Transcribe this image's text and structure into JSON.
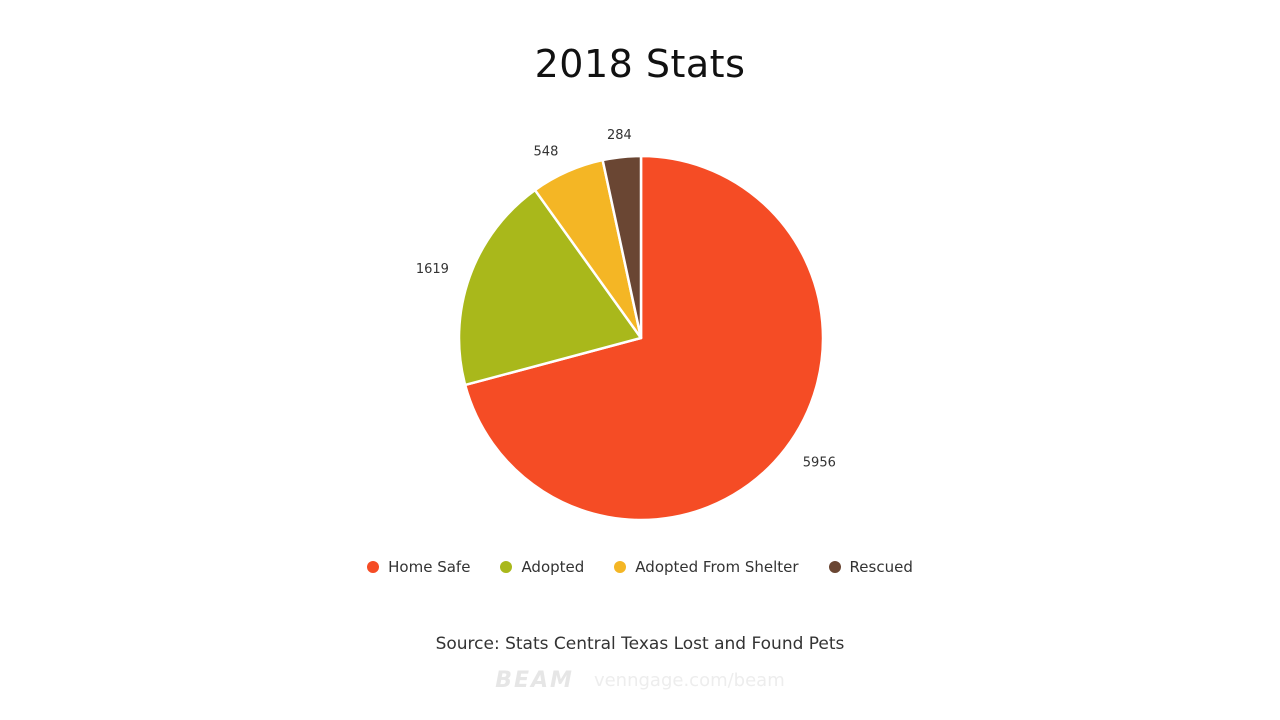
{
  "chart_data": {
    "type": "pie",
    "title": "2018 Stats",
    "slices": [
      {
        "label": "Home Safe",
        "value": 5956,
        "color": "#f54c25"
      },
      {
        "label": "Adopted",
        "value": 1619,
        "color": "#a9b81b"
      },
      {
        "label": "Adopted From Shelter",
        "value": 548,
        "color": "#f4b625"
      },
      {
        "label": "Rescued",
        "value": 284,
        "color": "#6a4633"
      }
    ],
    "legend_position": "bottom",
    "source": "Source: Stats Central Texas Lost and Found Pets"
  },
  "watermark": {
    "logo": "BEAM",
    "url": "venngage.com/beam"
  }
}
